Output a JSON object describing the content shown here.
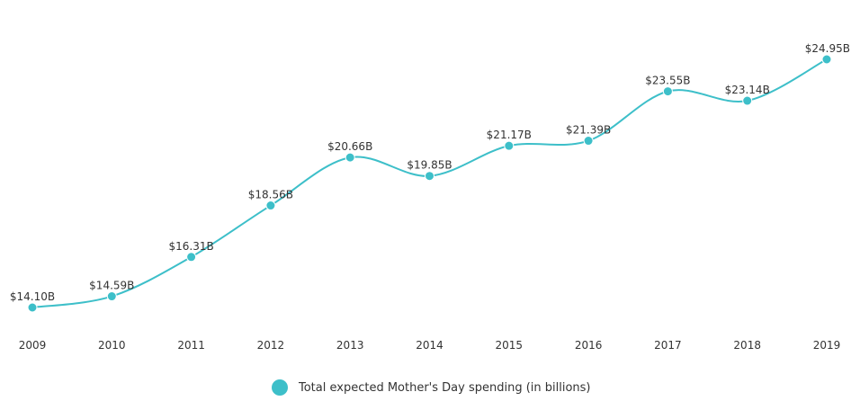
{
  "chart_data": {
    "type": "line",
    "title": "",
    "xlabel": "",
    "ylabel": "",
    "categories": [
      "2009",
      "2010",
      "2011",
      "2012",
      "2013",
      "2014",
      "2015",
      "2016",
      "2017",
      "2018",
      "2019"
    ],
    "series": [
      {
        "name": "Total expected Mother's Day spending (in billions)",
        "values": [
          14.1,
          14.59,
          16.31,
          18.56,
          20.66,
          19.85,
          21.17,
          21.39,
          23.55,
          23.14,
          24.95
        ],
        "labels": [
          "$14.10B",
          "$14.59B",
          "$16.31B",
          "$18.56B",
          "$20.66B",
          "$19.85B",
          "$21.17B",
          "$21.39B",
          "$23.55B",
          "$23.14B",
          "$24.95B"
        ],
        "color": "#3dbfc9"
      }
    ],
    "grid": false,
    "legend_position": "bottom"
  }
}
